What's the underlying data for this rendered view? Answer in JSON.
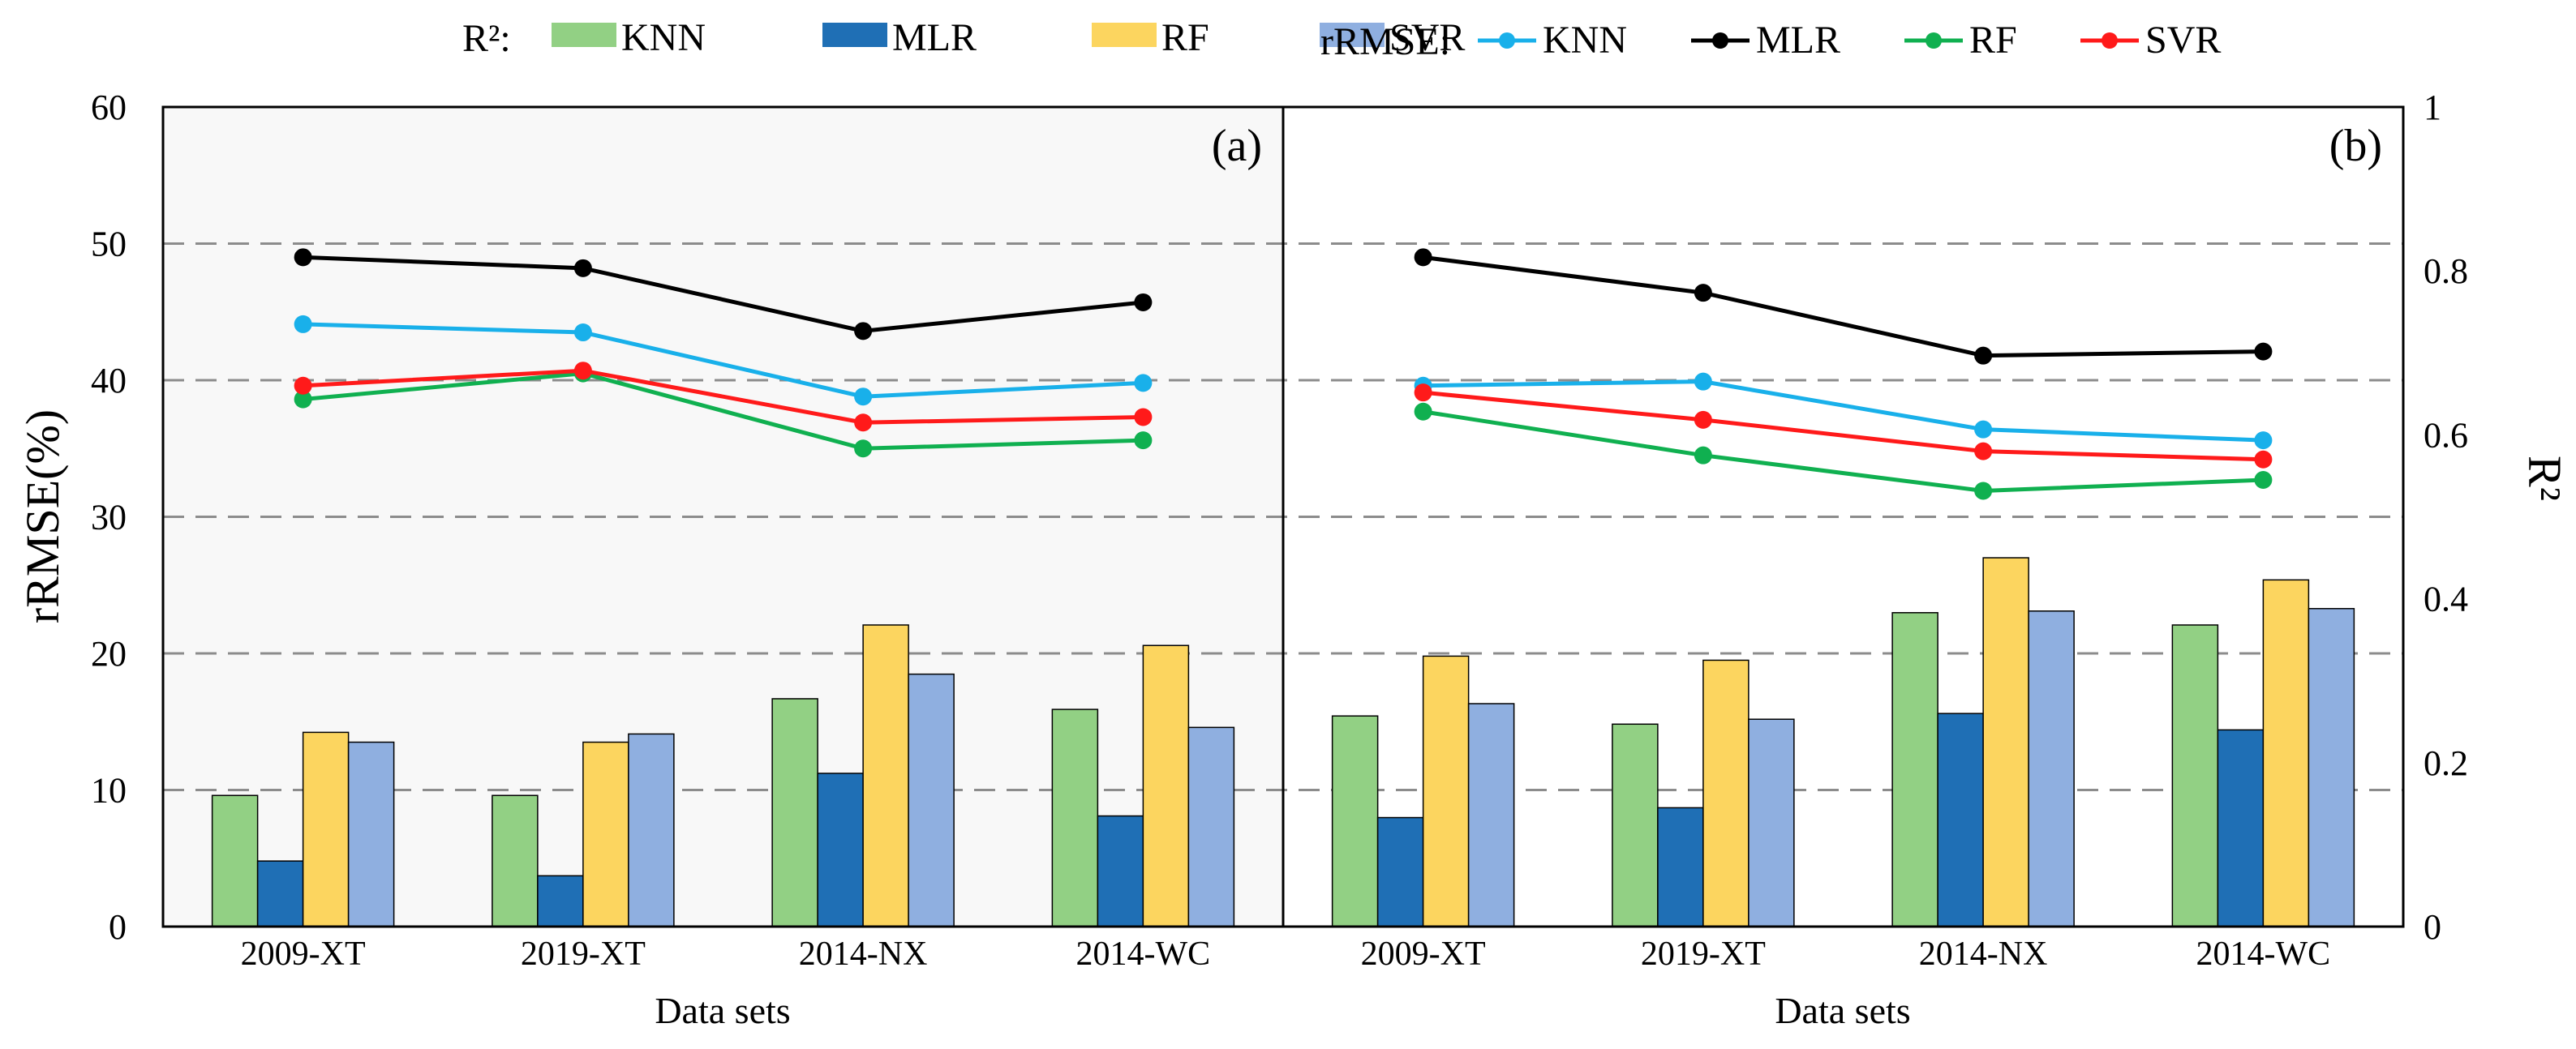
{
  "chart_data": {
    "type": "bar+line combo (two panels)",
    "left_axis": {
      "label": "rRMSE(%)",
      "range": [
        0,
        60
      ],
      "ticks": [
        "0",
        "10",
        "20",
        "30",
        "40",
        "50",
        "60"
      ]
    },
    "right_axis": {
      "label": "R²",
      "range": [
        0,
        1
      ],
      "ticks": [
        "0",
        "0.2",
        "0.4",
        "0.6",
        "0.8",
        "1"
      ]
    },
    "xlabel": "Data sets",
    "categories": [
      "2009-XT",
      "2019-XT",
      "2014-NX",
      "2014-WC"
    ],
    "legend": {
      "r2_title": "R²:",
      "rrmse_title": "rRMSE:",
      "bar_items": [
        {
          "name": "KNN",
          "color": "#92d084"
        },
        {
          "name": "MLR",
          "color": "#1f6fb5"
        },
        {
          "name": "RF",
          "color": "#fcd55f"
        },
        {
          "name": "SVR",
          "color": "#8fafe0"
        }
      ],
      "line_items": [
        {
          "name": "KNN",
          "color": "#19b0ea"
        },
        {
          "name": "MLR",
          "color": "#000000"
        },
        {
          "name": "RF",
          "color": "#10b050"
        },
        {
          "name": "SVR",
          "color": "#ff1a1a"
        }
      ]
    },
    "panels": [
      {
        "label": "(a)",
        "background": "#f8f8f8",
        "r2_bars": [
          {
            "name": "KNN",
            "values": [
              0.16,
              0.16,
              0.278,
              0.265
            ]
          },
          {
            "name": "MLR",
            "values": [
              0.08,
              0.062,
              0.187,
              0.135
            ]
          },
          {
            "name": "RF",
            "values": [
              0.237,
              0.225,
              0.368,
              0.343
            ]
          },
          {
            "name": "SVR",
            "values": [
              0.225,
              0.235,
              0.308,
              0.243
            ]
          }
        ],
        "rrmse_lines": [
          {
            "name": "KNN",
            "values": [
              44.1,
              43.5,
              38.8,
              39.8
            ]
          },
          {
            "name": "MLR",
            "values": [
              49.0,
              48.2,
              43.6,
              45.7
            ]
          },
          {
            "name": "RF",
            "values": [
              38.6,
              40.5,
              35.0,
              35.6
            ]
          },
          {
            "name": "SVR",
            "values": [
              39.6,
              40.7,
              36.9,
              37.3
            ]
          }
        ]
      },
      {
        "label": "(b)",
        "background": "#ffffff",
        "r2_bars": [
          {
            "name": "KNN",
            "values": [
              0.257,
              0.247,
              0.383,
              0.368
            ]
          },
          {
            "name": "MLR",
            "values": [
              0.133,
              0.145,
              0.26,
              0.24
            ]
          },
          {
            "name": "RF",
            "values": [
              0.33,
              0.325,
              0.45,
              0.423
            ]
          },
          {
            "name": "SVR",
            "values": [
              0.272,
              0.253,
              0.385,
              0.388
            ]
          }
        ],
        "rrmse_lines": [
          {
            "name": "KNN",
            "values": [
              39.6,
              39.9,
              36.4,
              35.6
            ]
          },
          {
            "name": "MLR",
            "values": [
              49.0,
              46.4,
              41.8,
              42.1
            ]
          },
          {
            "name": "RF",
            "values": [
              37.7,
              34.5,
              31.9,
              32.7
            ]
          },
          {
            "name": "SVR",
            "values": [
              39.1,
              37.1,
              34.8,
              34.2
            ]
          }
        ]
      }
    ]
  }
}
